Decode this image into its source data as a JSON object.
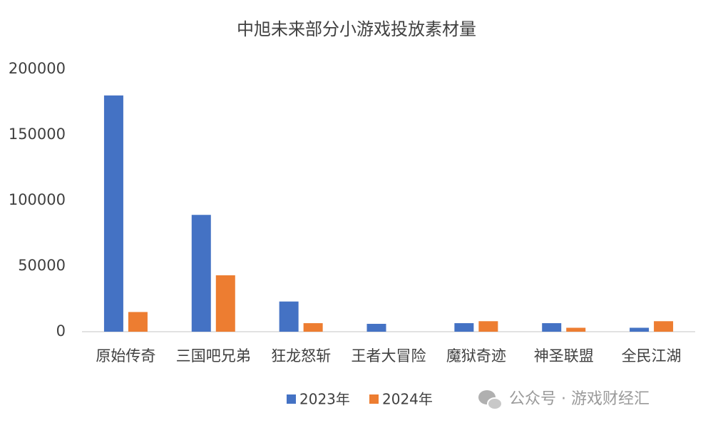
{
  "chart_data": {
    "type": "bar",
    "title": "中旭未来部分小游戏投放素材量",
    "categories": [
      "原始传奇",
      "三国吧兄弟",
      "狂龙怒斩",
      "王者大冒险",
      "魔狱奇迹",
      "神圣联盟",
      "全民江湖"
    ],
    "series": [
      {
        "name": "2023年",
        "color": "#4472c4",
        "values": [
          180000,
          89000,
          23000,
          6000,
          6500,
          6500,
          3000
        ]
      },
      {
        "name": "2024年",
        "color": "#ed7d31",
        "values": [
          15000,
          43000,
          6500,
          0,
          8000,
          3000,
          8000
        ]
      }
    ],
    "ylim": [
      0,
      200000
    ],
    "yticks": [
      0,
      50000,
      100000,
      150000,
      200000
    ],
    "grid": false,
    "legend": "bottom",
    "watermark": "公众号 · 游戏财经汇"
  }
}
